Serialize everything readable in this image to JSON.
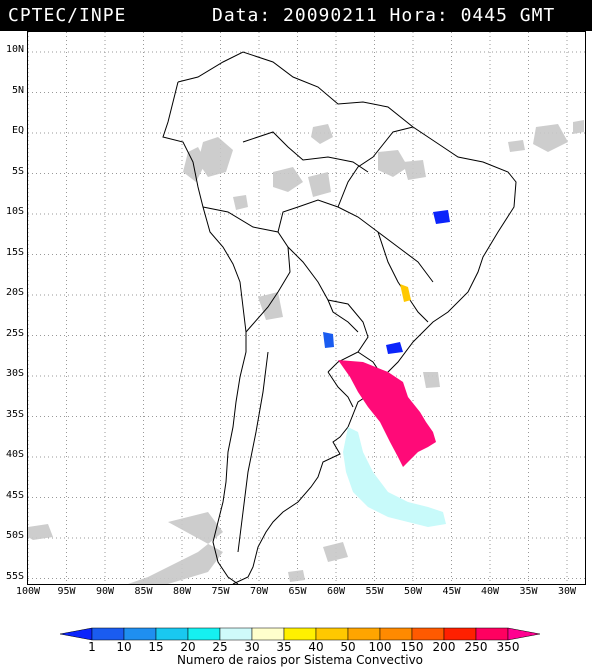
{
  "header": {
    "source": "CPTEC/INPE",
    "datetime": "Data: 20090211 Hora: 0445 GMT"
  },
  "axes": {
    "lat_labels": [
      "10N",
      "5N",
      "EQ",
      "5S",
      "10S",
      "15S",
      "20S",
      "25S",
      "30S",
      "35S",
      "40S",
      "45S",
      "50S",
      "55S"
    ],
    "lon_labels": [
      "100W",
      "95W",
      "90W",
      "85W",
      "80W",
      "75W",
      "70W",
      "65W",
      "60W",
      "55W",
      "50W",
      "45W",
      "40W",
      "35W",
      "30W"
    ]
  },
  "legend": {
    "caption": "Numero de raios por Sistema Convectivo",
    "ticks": [
      "1",
      "10",
      "15",
      "20",
      "25",
      "30",
      "35",
      "40",
      "50",
      "100",
      "150",
      "200",
      "250",
      "350"
    ],
    "colors": [
      "#0b24fb",
      "#1a5cf0",
      "#1f8ff0",
      "#19c8f0",
      "#15f0f0",
      "#cffafa",
      "#ffffcc",
      "#fff000",
      "#ffc800",
      "#ffa500",
      "#ff8a00",
      "#ff5a00",
      "#ff2000",
      "#ff0060",
      "#ff0090"
    ]
  },
  "systems": [
    {
      "name": "large-system-south-brazil",
      "color": "#ff0a78",
      "range": "350"
    },
    {
      "name": "large-system-patagonia-ocean",
      "color": "#c8fafa",
      "range": "25-30"
    },
    {
      "name": "system-paraguay",
      "color": "#1a5cf0",
      "range": "1-10"
    },
    {
      "name": "system-parana",
      "color": "#0b24fb",
      "range": "1-10"
    },
    {
      "name": "system-bahia",
      "color": "#0b24fb",
      "range": "1-10"
    },
    {
      "name": "system-minas",
      "color": "#ffc800",
      "range": "50-100"
    }
  ]
}
